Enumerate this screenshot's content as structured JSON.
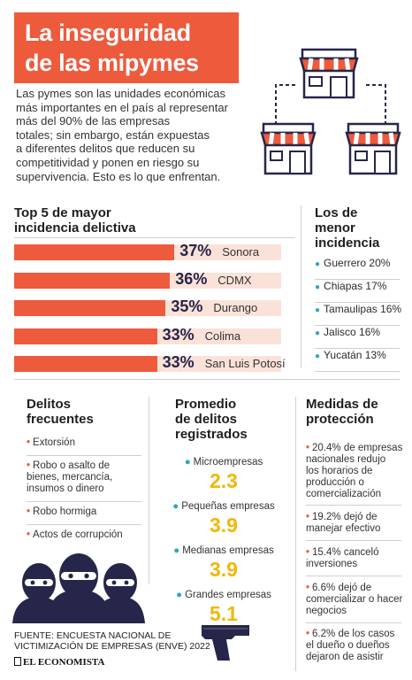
{
  "header": {
    "title_line1": "La inseguridad",
    "title_line2": "de las mipymes",
    "intro_lines": [
      "Las pymes son las unidades económicas",
      "más importantes en el país al representar",
      "más del 90% de las empresas",
      "totales; sin embargo, están expuestas",
      "a diferentes delitos que reducen su",
      "competitividad y ponen en riesgo su",
      "supervivencia. Esto es lo que enfrentan."
    ]
  },
  "top5": {
    "title_lines": [
      "Top 5 de mayor",
      "incidencia delictiva"
    ]
  },
  "low": {
    "title_lines": [
      "Los de",
      "menor",
      "incidencia"
    ],
    "items": [
      {
        "label": "Guerrero  20%"
      },
      {
        "label": "Chiapas  17%"
      },
      {
        "label": "Tamaulipas  16%"
      },
      {
        "label": "Jalisco  16%"
      },
      {
        "label": "Yucatán  13%"
      }
    ]
  },
  "chart_data": {
    "type": "bar",
    "orientation": "horizontal",
    "categories": [
      "Sonora",
      "CDMX",
      "Durango",
      "Colima",
      "San Luis Potosí"
    ],
    "values": [
      37,
      36,
      35,
      33,
      33
    ],
    "value_labels": [
      "37%",
      "36%",
      "35%",
      "33%",
      "33%"
    ],
    "xlim": [
      0,
      100
    ],
    "grid": false
  },
  "delitos": {
    "title_lines": [
      "Delitos",
      "frecuentes"
    ],
    "items": [
      {
        "lines": [
          "Extorsión"
        ]
      },
      {
        "lines": [
          "Robo o asalto de",
          "bienes, mercancía,",
          "insumos o dinero"
        ]
      },
      {
        "lines": [
          "Robo hormiga"
        ]
      },
      {
        "lines": [
          "Actos de corrupción"
        ]
      }
    ]
  },
  "promedio": {
    "title_lines": [
      "Promedio",
      "de delitos",
      "registrados"
    ],
    "items": [
      {
        "label": "Microempresas",
        "value": "2.3"
      },
      {
        "label": "Pequeñas empresas",
        "value": "3.9"
      },
      {
        "label": "Medianas empresas",
        "value": "3.9"
      },
      {
        "label": "Grandes empresas",
        "value": "5.1"
      }
    ]
  },
  "medidas": {
    "title_lines": [
      "Medidas de",
      "protección"
    ],
    "items": [
      {
        "lines": [
          "20.4% de empresas",
          "nacionales redujo",
          "los horarios de",
          "producción o",
          "comercialización"
        ]
      },
      {
        "lines": [
          "19.2% dejó de",
          "manejar efectivo"
        ]
      },
      {
        "lines": [
          "15.4% canceló",
          "inversiones"
        ]
      },
      {
        "lines": [
          "6.6%  dejó de",
          "comercializar o hacer",
          "negocios"
        ]
      },
      {
        "lines": [
          "6.2% de los casos",
          "el dueño o dueños",
          "dejaron de asistir"
        ]
      }
    ]
  },
  "footer": {
    "source_lines": [
      "FUENTE: ENCUESTA NACIONAL DE",
      "VICTIMIZACIÓN DE EMPRESAS (ENVE) 2022"
    ],
    "brand": "EL ECONOMISTA"
  },
  "colors": {
    "accent": "#ee5a3c",
    "bar_track": "#fbe2d8",
    "bullet_blue": "#2fa7c0",
    "highlight_yellow": "#f2b705",
    "percent_text": "#26264a"
  },
  "icons": [
    "store-network-icon",
    "thieves-illustration",
    "handgun-icon"
  ]
}
